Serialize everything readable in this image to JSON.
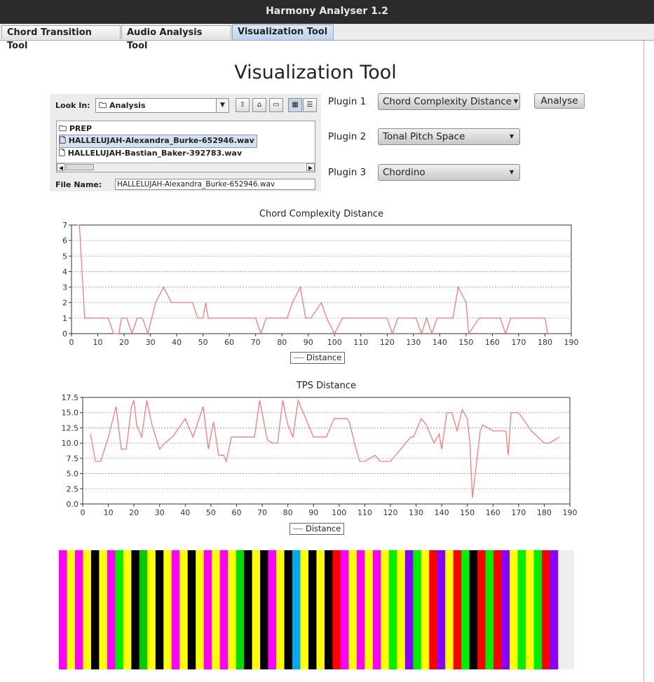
{
  "window": {
    "title": "Harmony Analyser 1.2"
  },
  "tabs": [
    "Chord Transition Tool",
    "Audio Analysis Tool",
    "Visualization Tool"
  ],
  "page": {
    "heading": "Visualization Tool"
  },
  "file_chooser": {
    "look_in_label": "Look In:",
    "look_in_value": "Analysis",
    "files": [
      "PREP",
      "HALLELUJAH-Alexandra_Burke-652946.wav",
      "HALLELUJAH-Bastian_Baker-392783.wav"
    ],
    "selected_index": 1,
    "file_name_label": "File Name:",
    "file_name_value": "HALLELUJAH-Alexandra_Burke-652946.wav"
  },
  "plugins": {
    "p1_label": "Plugin 1",
    "p1_value": "Chord Complexity Distance",
    "p2_label": "Plugin 2",
    "p2_value": "Tonal Pitch Space",
    "p3_label": "Plugin 3",
    "p3_value": "Chordino",
    "analyse_label": "Analyse"
  },
  "colors": {
    "line": "#ff7070",
    "grid": "#999999"
  },
  "chart_data": [
    {
      "type": "line",
      "title": "Chord Complexity Distance",
      "legend": "Distance",
      "xlim": [
        0,
        190
      ],
      "ylim": [
        0,
        7
      ],
      "xticks": [
        0,
        10,
        20,
        30,
        40,
        50,
        60,
        70,
        80,
        90,
        100,
        110,
        120,
        130,
        140,
        150,
        160,
        170,
        180,
        190
      ],
      "yticks": [
        0,
        1,
        2,
        3,
        4,
        5,
        6,
        7
      ],
      "x": [
        2,
        3,
        5,
        7,
        10,
        12,
        14,
        16,
        18,
        19,
        21,
        23,
        25,
        27,
        29,
        32,
        35,
        38,
        40,
        44,
        46,
        48,
        50,
        51,
        52,
        55,
        70,
        72,
        74,
        78,
        82,
        84,
        87,
        89,
        91,
        95,
        97,
        100,
        103,
        105,
        110,
        116,
        120,
        122,
        124,
        129,
        131,
        133,
        135,
        137,
        139,
        141,
        145,
        147,
        150,
        151,
        155,
        160,
        163,
        165,
        167,
        170,
        175,
        180,
        181
      ],
      "y": [
        7,
        7,
        1,
        1,
        1,
        1,
        1,
        0,
        0,
        1,
        1,
        0,
        1,
        1,
        0,
        2,
        3,
        2,
        2,
        2,
        2,
        1,
        1,
        2,
        1,
        1,
        1,
        0,
        1,
        1,
        1,
        2,
        3,
        1,
        1,
        2,
        1,
        0,
        1,
        1,
        1,
        1,
        1,
        0,
        1,
        1,
        1,
        0,
        1,
        0,
        1,
        1,
        1,
        3,
        2,
        0,
        1,
        1,
        1,
        0,
        1,
        1,
        1,
        1,
        0
      ]
    },
    {
      "type": "line",
      "title": "TPS Distance",
      "legend": "Distance",
      "xlim": [
        0,
        190
      ],
      "ylim": [
        0,
        17.5
      ],
      "xticks": [
        0,
        10,
        20,
        30,
        40,
        50,
        60,
        70,
        80,
        90,
        100,
        110,
        120,
        130,
        140,
        150,
        160,
        170,
        180,
        190
      ],
      "yticks": [
        0.0,
        2.5,
        5.0,
        7.5,
        10.0,
        12.5,
        15.0,
        17.5
      ],
      "yticklabels": [
        "0.0",
        "2.5",
        "5.0",
        "7.5",
        "10.0",
        "12.5",
        "15.0",
        "17.5"
      ],
      "x": [
        3,
        5,
        7,
        10,
        13,
        15,
        17,
        19,
        20,
        21,
        23,
        25,
        27,
        30,
        32,
        35,
        40,
        43,
        47,
        49,
        51,
        53,
        55,
        56,
        58,
        62,
        64,
        67,
        69,
        72,
        74,
        76,
        78,
        80,
        82,
        84,
        90,
        93,
        95,
        98,
        100,
        103,
        104,
        106,
        108,
        110,
        114,
        116,
        118,
        120,
        124,
        126,
        128,
        129,
        132,
        134,
        137,
        139,
        140,
        142,
        144,
        146,
        148,
        150,
        151,
        152,
        155,
        156,
        160,
        163,
        165,
        166,
        167,
        169,
        170,
        175,
        180,
        182,
        184,
        186
      ],
      "y": [
        11.5,
        7,
        7,
        11,
        16,
        9,
        9,
        16,
        17,
        13,
        11,
        17,
        13,
        9,
        10,
        11,
        14,
        11,
        16,
        9,
        13.5,
        8,
        8,
        7,
        11,
        11,
        11,
        11,
        17,
        10.5,
        10,
        10,
        17,
        13,
        11,
        17,
        11,
        11,
        11,
        14,
        14,
        14,
        13.5,
        10,
        7,
        7,
        8,
        7,
        7,
        7,
        9,
        10,
        11,
        11,
        14,
        13,
        10,
        11.5,
        9,
        15,
        15,
        12,
        15.5,
        14,
        10,
        1,
        12,
        13,
        12,
        12,
        12,
        8,
        15,
        15,
        15,
        12,
        10,
        10,
        10.5,
        11
      ]
    },
    {
      "type": "heatmap",
      "title": "",
      "bars": [
        "#ff00ff",
        "#ffff00",
        "#ff00ff",
        "#ffff00",
        "#000000",
        "#ffff00",
        "#ff00ff",
        "#00ee00",
        "#ffff00",
        "#000000",
        "#00cc00",
        "#ffff00",
        "#000000",
        "#ffff00",
        "#ff00ff",
        "#ffff00",
        "#000000",
        "#ffff00",
        "#ff00ff",
        "#ffff00",
        "#ff00ff",
        "#ffff00",
        "#00dd00",
        "#000000",
        "#ffff00",
        "#000000",
        "#ff00ff",
        "#ffff00",
        "#000000",
        "#00aaee",
        "#ffff00",
        "#000000",
        "#ffff00",
        "#000000",
        "#ff0000",
        "#ff00ff",
        "#ffff00",
        "#ff00ff",
        "#ffff00",
        "#ff00ff",
        "#ffff00",
        "#00ee00",
        "#ffff00",
        "#8800ff",
        "#00ee00",
        "#ffff00",
        "#ff0000",
        "#8800ff",
        "#ffff00",
        "#ff0000",
        "#00ee00",
        "#000000",
        "#ff0000",
        "#00ee00",
        "#ff0000",
        "#8800ff",
        "#ffff00",
        "#00ee00",
        "#ffff00",
        "#00ee00",
        "#ff0000",
        "#8800ff"
      ]
    }
  ]
}
